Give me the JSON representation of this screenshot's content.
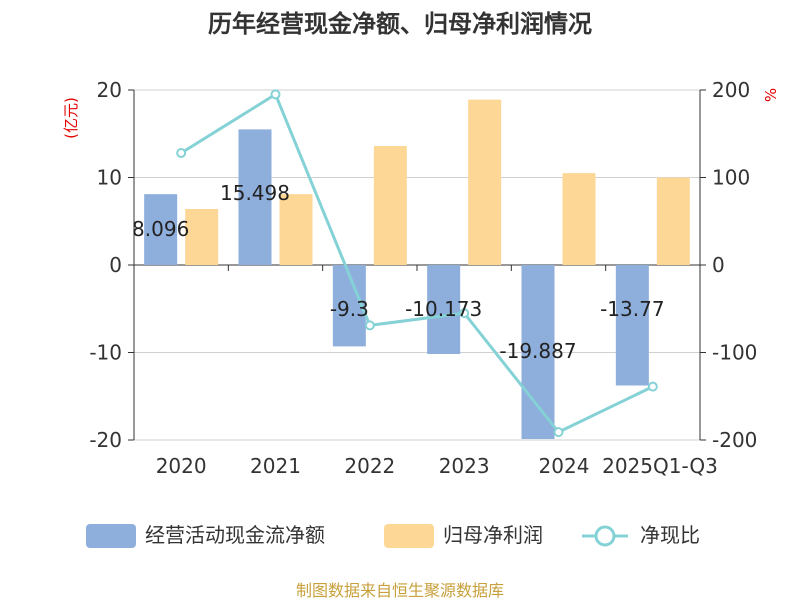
{
  "chart_data": {
    "type": "bar",
    "title": "历年经营现金净额、归母净利润情况",
    "categories": [
      "2020",
      "2021",
      "2022",
      "2023",
      "2024",
      "2025Q1-Q3"
    ],
    "left_axis": {
      "unit": "(亿元)",
      "range": [
        -20,
        20
      ],
      "ticks": [
        "20",
        "10",
        "0",
        "-10",
        "-20"
      ]
    },
    "right_axis": {
      "unit": "%",
      "range": [
        -200,
        200
      ],
      "ticks": [
        "200",
        "100",
        "0",
        "-100",
        "-200"
      ]
    },
    "series": [
      {
        "name": "经营活动现金流净额",
        "type": "bar",
        "axis": "left",
        "color": "#8eaedc",
        "values": [
          8.096,
          15.498,
          -9.3,
          -10.173,
          -19.887,
          -13.77
        ],
        "labels": [
          "8.096",
          "15.498",
          "-9.3",
          "-10.173",
          "-19.887",
          "-13.77"
        ]
      },
      {
        "name": "归母净利润",
        "type": "bar",
        "axis": "left",
        "color": "#fdd795",
        "values": [
          6.4,
          8.1,
          13.6,
          18.9,
          10.5,
          10.0
        ]
      },
      {
        "name": "净现比",
        "type": "line",
        "axis": "right",
        "color": "#85d2d6",
        "values": [
          128,
          195,
          -69,
          -55,
          -191,
          -139
        ]
      }
    ],
    "legend_position": "bottom",
    "grid": true
  },
  "source": "制图数据来自恒生聚源数据库"
}
